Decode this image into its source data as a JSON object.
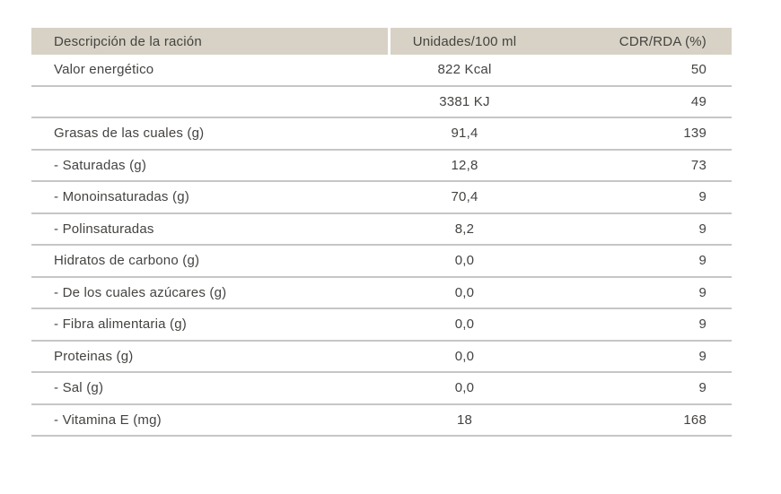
{
  "colors": {
    "header_background": "#d7d2c5",
    "text": "#454340",
    "divider": "#c6c6c6",
    "page_background": "#ffffff"
  },
  "table": {
    "header": {
      "col_description": "Descripción de la ración",
      "col_unidades": "Unidades/100 ml",
      "col_cdr": "CDR/RDA (%)"
    },
    "rows": [
      {
        "description": "Valor energético",
        "unidades": "822 Kcal",
        "cdr": "50"
      },
      {
        "description": "",
        "unidades": "3381 KJ",
        "cdr": "49"
      },
      {
        "description": "Grasas de las cuales (g)",
        "unidades": "91,4",
        "cdr": "139"
      },
      {
        "description": "- Saturadas (g)",
        "unidades": "12,8",
        "cdr": "73"
      },
      {
        "description": "- Monoinsaturadas (g)",
        "unidades": "70,4",
        "cdr": "9"
      },
      {
        "description": "- Polinsaturadas",
        "unidades": "8,2",
        "cdr": "9"
      },
      {
        "description": "Hidratos de carbono (g)",
        "unidades": "0,0",
        "cdr": "9"
      },
      {
        "description": "- De los cuales azúcares (g)",
        "unidades": "0,0",
        "cdr": "9"
      },
      {
        "description": "- Fibra alimentaria (g)",
        "unidades": "0,0",
        "cdr": "9"
      },
      {
        "description": "Proteinas (g)",
        "unidades": "0,0",
        "cdr": "9"
      },
      {
        "description": "- Sal (g)",
        "unidades": "0,0",
        "cdr": "9"
      },
      {
        "description": "- Vitamina E (mg)",
        "unidades": "18",
        "cdr": "168"
      }
    ]
  },
  "chart_data": {
    "type": "table",
    "columns": [
      "Descripción de la ración",
      "Unidades/100 ml",
      "CDR/RDA (%)"
    ],
    "rows": [
      [
        "Valor energético",
        "822 Kcal",
        "50"
      ],
      [
        "",
        "3381 KJ",
        "49"
      ],
      [
        "Grasas de las cuales (g)",
        "91,4",
        "139"
      ],
      [
        "- Saturadas (g)",
        "12,8",
        "73"
      ],
      [
        "- Monoinsaturadas (g)",
        "70,4",
        "9"
      ],
      [
        "- Polinsaturadas",
        "8,2",
        "9"
      ],
      [
        "Hidratos de carbono (g)",
        "0,0",
        "9"
      ],
      [
        "- De los cuales azúcares (g)",
        "0,0",
        "9"
      ],
      [
        "- Fibra alimentaria (g)",
        "0,0",
        "9"
      ],
      [
        "Proteinas (g)",
        "0,0",
        "9"
      ],
      [
        "- Sal (g)",
        "0,0",
        "9"
      ],
      [
        "- Vitamina E (mg)",
        "18",
        "168"
      ]
    ]
  }
}
